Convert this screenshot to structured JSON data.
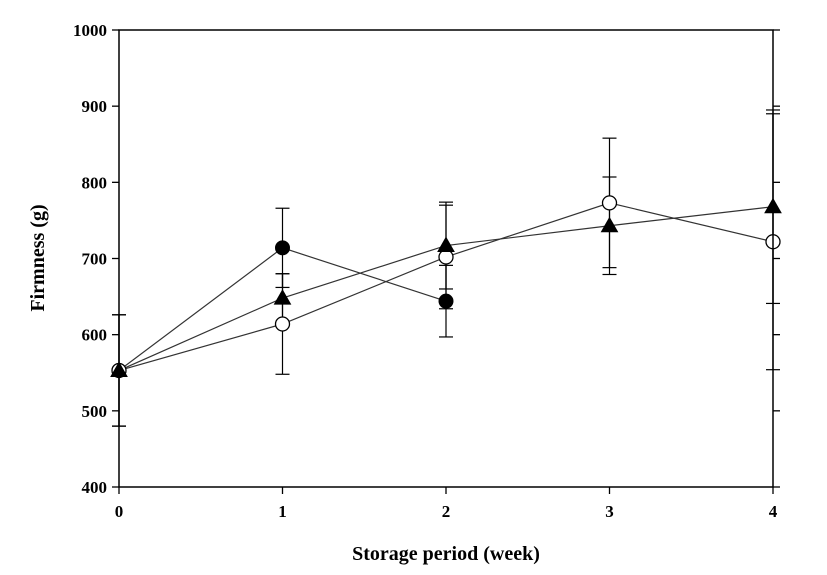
{
  "chart_data": {
    "type": "line",
    "xlabel": "Storage period (week)",
    "ylabel": "Firmness (g)",
    "xlim": [
      0,
      4
    ],
    "ylim": [
      400,
      1000
    ],
    "xticks": [
      "0",
      "1",
      "2",
      "3",
      "4"
    ],
    "yticks": [
      "400",
      "500",
      "600",
      "700",
      "800",
      "900",
      "1000"
    ],
    "grid": false,
    "legend": "none",
    "series": [
      {
        "marker": "filled-circle",
        "x": [
          0,
          1,
          2
        ],
        "y": [
          553,
          714,
          644
        ],
        "err": [
          73,
          52,
          47
        ]
      },
      {
        "marker": "open-circle",
        "x": [
          0,
          1,
          2,
          3,
          4
        ],
        "y": [
          553,
          614,
          702,
          773,
          722
        ],
        "err": [
          73,
          66,
          68,
          85,
          168
        ]
      },
      {
        "marker": "filled-triangle",
        "x": [
          0,
          1,
          2,
          3,
          4
        ],
        "y": [
          553,
          648,
          717,
          743,
          768
        ],
        "err": [
          73,
          32,
          57,
          64,
          127
        ]
      }
    ]
  }
}
